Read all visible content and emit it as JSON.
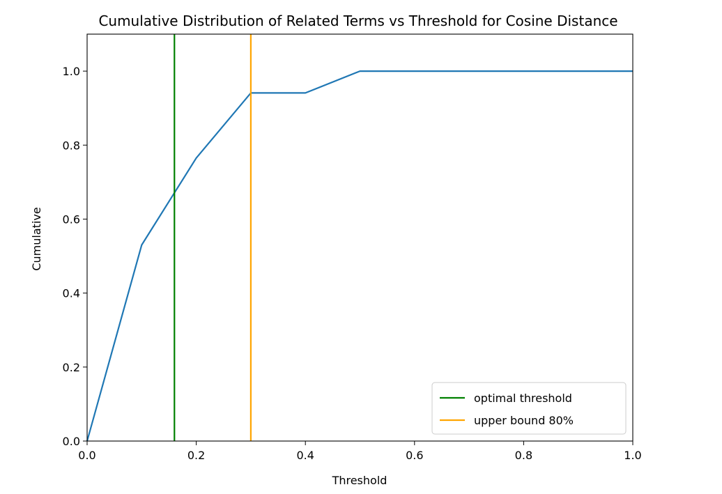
{
  "chart_data": {
    "type": "line",
    "title": "Cumulative Distribution of Related Terms vs Threshold for Cosine Distance",
    "xlabel": "Threshold",
    "ylabel": "Cumulative",
    "xlim": [
      0.0,
      1.0
    ],
    "ylim": [
      0.0,
      1.1
    ],
    "grid": false,
    "x_ticks": [
      "0.0",
      "0.2",
      "0.4",
      "0.6",
      "0.8",
      "1.0"
    ],
    "x_tick_values": [
      0.0,
      0.2,
      0.4,
      0.6,
      0.8,
      1.0
    ],
    "y_ticks": [
      "0.0",
      "0.2",
      "0.4",
      "0.6",
      "0.8",
      "1.0"
    ],
    "y_tick_values": [
      0.0,
      0.2,
      0.4,
      0.6,
      0.8,
      1.0
    ],
    "series": [
      {
        "color": "#1f77b4",
        "x": [
          0.0,
          0.1,
          0.2,
          0.3,
          0.4,
          0.5,
          0.6,
          0.7,
          0.8,
          0.9,
          1.0
        ],
        "y": [
          0.0,
          0.53,
          0.765,
          0.941,
          0.941,
          1.0,
          1.0,
          1.0,
          1.0,
          1.0,
          1.0
        ]
      }
    ],
    "vlines": [
      {
        "name": "optimal threshold",
        "x": 0.16,
        "color": "#008000"
      },
      {
        "name": "upper bound 80%",
        "x": 0.3,
        "color": "#ffa500"
      }
    ],
    "legend": {
      "position": "lower right",
      "entries": [
        "optimal threshold",
        "upper bound 80%"
      ]
    }
  }
}
